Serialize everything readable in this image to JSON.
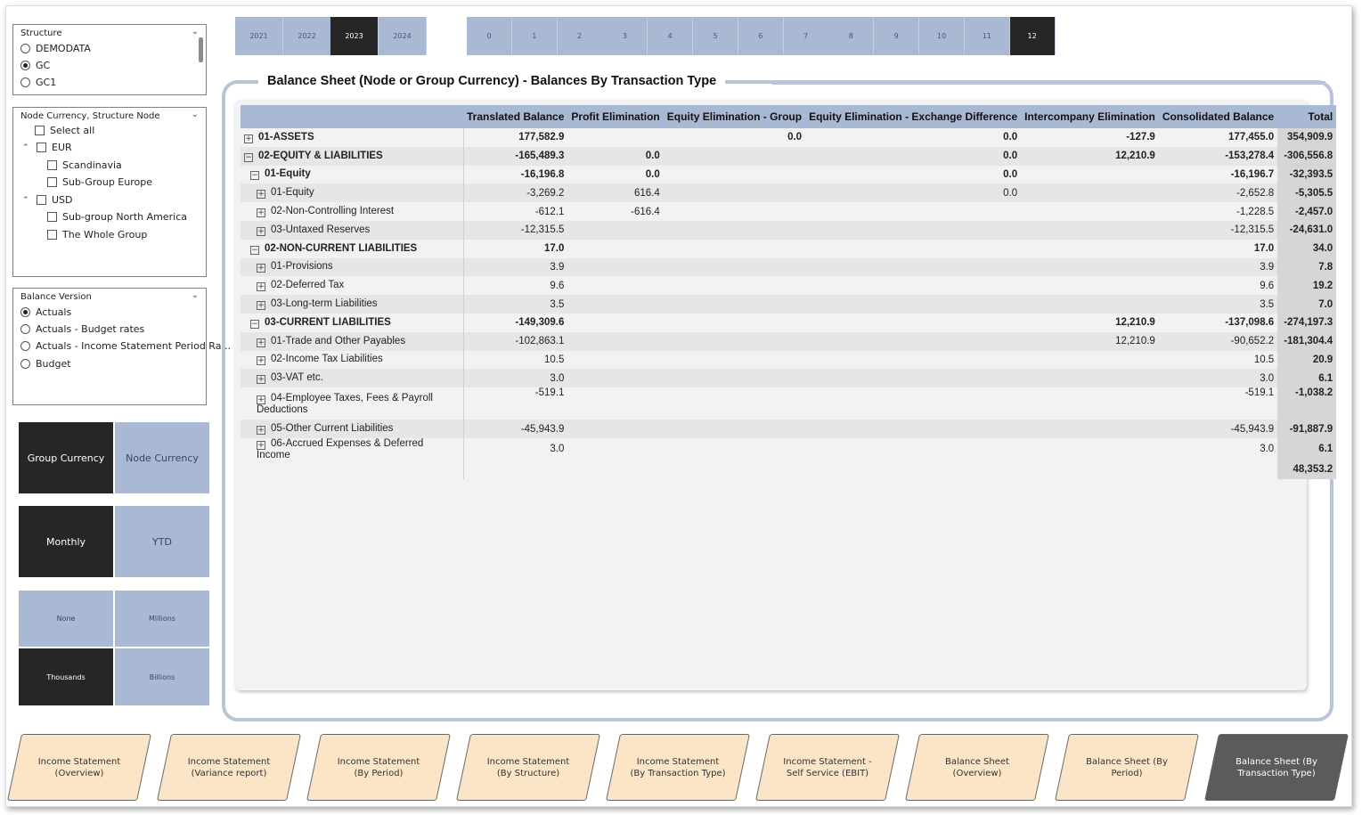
{
  "structure": {
    "title": "Structure",
    "options": [
      {
        "label": "DEMODATA",
        "selected": false
      },
      {
        "label": "GC",
        "selected": true
      },
      {
        "label": "GC1",
        "selected": false
      }
    ]
  },
  "node": {
    "title": "Node Currency, Structure Node",
    "select_all": "Select all",
    "eur": "EUR",
    "scandinavia": "Scandinavia",
    "subgroup_europe": "Sub-Group Europe",
    "usd": "USD",
    "subgroup_na": "Sub-group North America",
    "whole_group": "The Whole Group"
  },
  "balance_version": {
    "title": "Balance Version",
    "options": [
      {
        "label": "Actuals",
        "selected": true
      },
      {
        "label": "Actuals - Budget rates",
        "selected": false
      },
      {
        "label": "Actuals - Income Statement Period Ra...",
        "selected": false
      },
      {
        "label": "Budget",
        "selected": false
      }
    ]
  },
  "currency_toggle": {
    "group": "Group Currency",
    "node": "Node Currency"
  },
  "period_toggle": {
    "monthly": "Monthly",
    "ytd": "YTD"
  },
  "units": {
    "none": "None",
    "millions": "Millions",
    "thousands": "Thousands",
    "billions": "Billions"
  },
  "years": [
    "2021",
    "2022",
    "2023",
    "2024"
  ],
  "selected_year": "2023",
  "periods": [
    "0",
    "1",
    "2",
    "3",
    "4",
    "5",
    "6",
    "7",
    "8",
    "9",
    "10",
    "11",
    "12"
  ],
  "selected_period": "12",
  "visual": {
    "title": "Balance Sheet (Node or Group Currency) - Balances By Transaction Type",
    "columns": [
      "",
      "Translated Balance",
      "Profit Elimination",
      "Equity Elimination - Group",
      "Equity Elimination - Exchange Difference",
      "Intercompany Elimination",
      "Consolidated Balance",
      "Total"
    ],
    "rows": [
      {
        "label": "01-ASSETS",
        "level": 0,
        "expand": "+",
        "bold": true,
        "vals": [
          "177,582.9",
          "",
          "0.0",
          "0.0",
          "-127.9",
          "177,455.0",
          "354,909.9"
        ]
      },
      {
        "label": "02-EQUITY & LIABILITIES",
        "level": 0,
        "expand": "−",
        "bold": true,
        "vals": [
          "-165,489.3",
          "0.0",
          "",
          "0.0",
          "12,210.9",
          "-153,278.4",
          "-306,556.8"
        ]
      },
      {
        "label": "01-Equity",
        "level": 1,
        "expand": "−",
        "bold": true,
        "vals": [
          "-16,196.8",
          "0.0",
          "",
          "0.0",
          "",
          "-16,196.7",
          "-32,393.5"
        ]
      },
      {
        "label": "01-Equity",
        "level": 2,
        "expand": "+",
        "bold": false,
        "vals": [
          "-3,269.2",
          "616.4",
          "",
          "0.0",
          "",
          "-2,652.8",
          "-5,305.5"
        ]
      },
      {
        "label": "02-Non-Controlling Interest",
        "level": 2,
        "expand": "+",
        "bold": false,
        "vals": [
          "-612.1",
          "-616.4",
          "",
          "",
          "",
          "-1,228.5",
          "-2,457.0"
        ]
      },
      {
        "label": "03-Untaxed Reserves",
        "level": 2,
        "expand": "+",
        "bold": false,
        "vals": [
          "-12,315.5",
          "",
          "",
          "",
          "",
          "-12,315.5",
          "-24,631.0"
        ]
      },
      {
        "label": "02-NON-CURRENT LIABILITIES",
        "level": 1,
        "expand": "−",
        "bold": true,
        "vals": [
          "17.0",
          "",
          "",
          "",
          "",
          "17.0",
          "34.0"
        ]
      },
      {
        "label": "01-Provisions",
        "level": 2,
        "expand": "+",
        "bold": false,
        "vals": [
          "3.9",
          "",
          "",
          "",
          "",
          "3.9",
          "7.8"
        ]
      },
      {
        "label": "02-Deferred Tax",
        "level": 2,
        "expand": "+",
        "bold": false,
        "vals": [
          "9.6",
          "",
          "",
          "",
          "",
          "9.6",
          "19.2"
        ]
      },
      {
        "label": "03-Long-term Liabilities",
        "level": 2,
        "expand": "+",
        "bold": false,
        "vals": [
          "3.5",
          "",
          "",
          "",
          "",
          "3.5",
          "7.0"
        ]
      },
      {
        "label": "03-CURRENT LIABILITIES",
        "level": 1,
        "expand": "−",
        "bold": true,
        "vals": [
          "-149,309.6",
          "",
          "",
          "",
          "12,210.9",
          "-137,098.6",
          "-274,197.3"
        ]
      },
      {
        "label": "01-Trade and Other Payables",
        "level": 2,
        "expand": "+",
        "bold": false,
        "vals": [
          "-102,863.1",
          "",
          "",
          "",
          "12,210.9",
          "-90,652.2",
          "-181,304.4"
        ]
      },
      {
        "label": "02-Income Tax Liabilities",
        "level": 2,
        "expand": "+",
        "bold": false,
        "vals": [
          "10.5",
          "",
          "",
          "",
          "",
          "10.5",
          "20.9"
        ]
      },
      {
        "label": "03-VAT etc.",
        "level": 2,
        "expand": "+",
        "bold": false,
        "vals": [
          "3.0",
          "",
          "",
          "",
          "",
          "3.0",
          "6.1"
        ]
      },
      {
        "label": "04-Employee Taxes, Fees & Payroll Deductions",
        "level": 2,
        "expand": "+",
        "bold": false,
        "vals": [
          "-519.1",
          "",
          "",
          "",
          "",
          "-519.1",
          "-1,038.2"
        ]
      },
      {
        "label": "05-Other Current Liabilities",
        "level": 2,
        "expand": "+",
        "bold": false,
        "vals": [
          "-45,943.9",
          "",
          "",
          "",
          "",
          "-45,943.9",
          "-91,887.9"
        ]
      },
      {
        "label": "06-Accrued Expenses & Deferred Income",
        "level": 2,
        "expand": "+",
        "bold": false,
        "vals": [
          "3.0",
          "",
          "",
          "",
          "",
          "3.0",
          "6.1"
        ]
      }
    ],
    "grand_total": "48,353.2"
  },
  "nav": [
    {
      "label": "Income Statement (Overview)",
      "active": false
    },
    {
      "label": "Income Statement (Variance report)",
      "active": false
    },
    {
      "label": "Income Statement (By Period)",
      "active": false
    },
    {
      "label": "Income Statement (By Structure)",
      "active": false
    },
    {
      "label": "Income Statement (By Transaction Type)",
      "active": false
    },
    {
      "label": "Income Statement - Self Service (EBIT)",
      "active": false
    },
    {
      "label": "Balance Sheet (Overview)",
      "active": false
    },
    {
      "label": "Balance Sheet (By Period)",
      "active": false
    },
    {
      "label": "Balance Sheet (By Transaction Type)",
      "active": true
    }
  ],
  "colors": {
    "accent_light": "#a9b8d3",
    "accent_dark": "#262626",
    "nav_fill": "#fce4c6",
    "nav_active": "#5b5b5b"
  }
}
